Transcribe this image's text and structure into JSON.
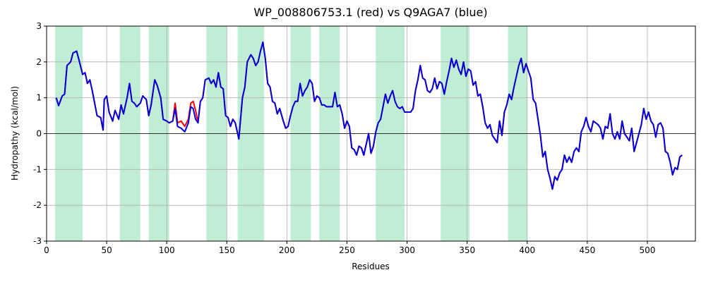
{
  "chart_data": {
    "type": "line",
    "title": "WP_008806753.1 (red) vs Q9AGA7 (blue)",
    "x_label": "Residues",
    "y_label": "Hydropathy (kcal/mol)",
    "xlim": [
      0,
      540
    ],
    "xticks": [
      0,
      50,
      100,
      150,
      200,
      250,
      300,
      350,
      400,
      450,
      500
    ],
    "ylim": [
      -3,
      3
    ],
    "yticks": [
      -3,
      -2,
      -1,
      0,
      1,
      2,
      3
    ],
    "grid": true,
    "reference_line": 0,
    "spans": [
      [
        7,
        30
      ],
      [
        61,
        78
      ],
      [
        85,
        102
      ],
      [
        133,
        150
      ],
      [
        159,
        181
      ],
      [
        203,
        220
      ],
      [
        227,
        244
      ],
      [
        274,
        298
      ],
      [
        328,
        352
      ],
      [
        384,
        400
      ]
    ],
    "span_color": "#c0eed4",
    "x": [
      8,
      10,
      13,
      15,
      17,
      20,
      22,
      25,
      27,
      30,
      32,
      34,
      36,
      38,
      40,
      42,
      45,
      47,
      48,
      50,
      52,
      55,
      57,
      60,
      62,
      64,
      67,
      69,
      71,
      73,
      75,
      78,
      80,
      83,
      85,
      87,
      90,
      92,
      95,
      97,
      100,
      102,
      105,
      107,
      109,
      112,
      115,
      118,
      120,
      122,
      124,
      126,
      128,
      130,
      132,
      135,
      137,
      139,
      141,
      143,
      145,
      147,
      149,
      151,
      153,
      155,
      157,
      160,
      163,
      165,
      167,
      170,
      172,
      174,
      176,
      178,
      180,
      182,
      184,
      186,
      188,
      190,
      192,
      194,
      197,
      199,
      201,
      203,
      205,
      207,
      209,
      211,
      213,
      215,
      217,
      219,
      221,
      223,
      225,
      227,
      229,
      231,
      233,
      236,
      238,
      240,
      242,
      244,
      246,
      248,
      250,
      252,
      254,
      256,
      258,
      260,
      262,
      264,
      266,
      268,
      270,
      272,
      274,
      276,
      278,
      280,
      282,
      284,
      286,
      288,
      290,
      292,
      294,
      296,
      298,
      300,
      303,
      305,
      307,
      309,
      311,
      313,
      315,
      317,
      319,
      321,
      323,
      325,
      327,
      329,
      331,
      333,
      335,
      337,
      339,
      341,
      343,
      345,
      347,
      349,
      351,
      353,
      355,
      357,
      359,
      361,
      363,
      365,
      367,
      369,
      371,
      373,
      375,
      377,
      379,
      381,
      383,
      385,
      387,
      389,
      391,
      393,
      395,
      397,
      399,
      401,
      403,
      405,
      407,
      409,
      411,
      413,
      415,
      417,
      419,
      421,
      423,
      425,
      427,
      429,
      431,
      433,
      435,
      437,
      439,
      441,
      443,
      445,
      447,
      449,
      451,
      453,
      455,
      457,
      459,
      461,
      463,
      465,
      467,
      469,
      471,
      473,
      475,
      477,
      479,
      481,
      483,
      485,
      487,
      489,
      491,
      493,
      495,
      497,
      499,
      501,
      503,
      505,
      507,
      509,
      511,
      513,
      515,
      517,
      519,
      521,
      523,
      525,
      527,
      529
    ],
    "series": [
      {
        "name": "WP_008806753.1",
        "color": "#ff0000",
        "values": [
          1.0,
          0.78,
          1.05,
          1.1,
          1.9,
          2.0,
          2.25,
          2.3,
          2.05,
          1.65,
          1.7,
          1.4,
          1.5,
          1.2,
          0.85,
          0.5,
          0.45,
          0.1,
          0.95,
          1.05,
          0.6,
          0.35,
          0.65,
          0.4,
          0.8,
          0.55,
          1.0,
          1.4,
          0.9,
          0.85,
          0.75,
          0.85,
          1.05,
          0.95,
          0.5,
          0.8,
          1.5,
          1.35,
          1.0,
          0.4,
          0.35,
          0.3,
          0.35,
          0.85,
          0.3,
          0.35,
          0.2,
          0.4,
          0.85,
          0.9,
          0.65,
          0.3,
          0.9,
          1.0,
          1.5,
          1.55,
          1.4,
          1.5,
          1.3,
          1.7,
          1.3,
          1.25,
          0.5,
          0.45,
          0.2,
          0.4,
          0.3,
          -0.15,
          1.0,
          1.3,
          2.0,
          2.2,
          2.1,
          1.9,
          2.0,
          2.3,
          2.55,
          2.1,
          1.4,
          1.3,
          0.9,
          0.85,
          0.55,
          0.7,
          0.35,
          0.15,
          0.2,
          0.5,
          0.75,
          0.9,
          0.9,
          1.4,
          1.05,
          1.2,
          1.3,
          1.5,
          1.4,
          0.9,
          1.05,
          1.0,
          0.8,
          0.8,
          0.75,
          0.75,
          0.75,
          1.15,
          0.75,
          0.8,
          0.55,
          0.15,
          0.35,
          0.2,
          -0.4,
          -0.45,
          -0.6,
          -0.35,
          -0.4,
          -0.6,
          -0.3,
          0.0,
          -0.55,
          -0.35,
          0.05,
          0.3,
          0.4,
          0.75,
          1.1,
          0.85,
          1.05,
          1.2,
          0.9,
          0.75,
          0.7,
          0.75,
          0.6,
          0.6,
          0.6,
          0.7,
          1.2,
          1.5,
          1.9,
          1.55,
          1.5,
          1.2,
          1.15,
          1.25,
          1.55,
          1.25,
          1.45,
          1.4,
          1.1,
          1.45,
          1.75,
          2.1,
          1.85,
          2.05,
          1.8,
          1.65,
          2.0,
          1.6,
          1.8,
          1.75,
          1.35,
          1.45,
          1.05,
          1.1,
          0.75,
          0.3,
          0.15,
          0.25,
          -0.05,
          -0.15,
          -0.25,
          0.35,
          -0.05,
          0.6,
          0.8,
          1.1,
          0.95,
          1.3,
          1.6,
          1.9,
          2.1,
          1.7,
          1.95,
          1.75,
          1.55,
          0.95,
          0.85,
          0.4,
          -0.05,
          -0.65,
          -0.5,
          -1.0,
          -1.25,
          -1.55,
          -1.2,
          -1.3,
          -1.1,
          -1.0,
          -0.6,
          -0.8,
          -0.65,
          -0.8,
          -0.5,
          -0.4,
          -0.5,
          0.05,
          0.2,
          0.45,
          0.2,
          0.05,
          0.35,
          0.3,
          0.25,
          0.15,
          -0.15,
          0.2,
          0.15,
          0.55,
          0.0,
          -0.15,
          0.05,
          -0.15,
          0.35,
          0.0,
          -0.1,
          -0.2,
          0.15,
          -0.5,
          -0.25,
          0.0,
          0.25,
          0.7,
          0.4,
          0.6,
          0.35,
          0.25,
          -0.1,
          0.25,
          0.3,
          0.15,
          -0.5,
          -0.55,
          -0.8,
          -1.15,
          -0.95,
          -1.0,
          -0.65,
          -0.6
        ]
      },
      {
        "name": "Q9AGA7",
        "color": "#0000dd",
        "values": [
          1.0,
          0.78,
          1.05,
          1.1,
          1.9,
          2.0,
          2.25,
          2.3,
          2.05,
          1.65,
          1.7,
          1.4,
          1.5,
          1.2,
          0.85,
          0.5,
          0.45,
          0.1,
          0.95,
          1.05,
          0.6,
          0.35,
          0.65,
          0.4,
          0.8,
          0.55,
          1.0,
          1.4,
          0.9,
          0.85,
          0.75,
          0.85,
          1.05,
          0.95,
          0.5,
          0.8,
          1.5,
          1.35,
          1.0,
          0.4,
          0.35,
          0.3,
          0.35,
          0.7,
          0.2,
          0.15,
          0.05,
          0.3,
          0.75,
          0.7,
          0.4,
          0.3,
          0.9,
          1.0,
          1.5,
          1.55,
          1.4,
          1.5,
          1.3,
          1.7,
          1.3,
          1.25,
          0.5,
          0.45,
          0.2,
          0.4,
          0.3,
          -0.15,
          1.0,
          1.3,
          2.0,
          2.2,
          2.1,
          1.9,
          2.0,
          2.3,
          2.55,
          2.1,
          1.4,
          1.3,
          0.9,
          0.85,
          0.55,
          0.7,
          0.35,
          0.15,
          0.2,
          0.5,
          0.75,
          0.9,
          0.9,
          1.4,
          1.05,
          1.2,
          1.3,
          1.5,
          1.4,
          0.9,
          1.05,
          1.0,
          0.8,
          0.8,
          0.75,
          0.75,
          0.75,
          1.15,
          0.75,
          0.8,
          0.55,
          0.15,
          0.35,
          0.2,
          -0.4,
          -0.45,
          -0.6,
          -0.35,
          -0.4,
          -0.6,
          -0.3,
          0.0,
          -0.55,
          -0.35,
          0.05,
          0.3,
          0.4,
          0.75,
          1.1,
          0.85,
          1.05,
          1.2,
          0.9,
          0.75,
          0.7,
          0.75,
          0.6,
          0.6,
          0.6,
          0.7,
          1.2,
          1.5,
          1.9,
          1.55,
          1.5,
          1.2,
          1.15,
          1.25,
          1.55,
          1.25,
          1.45,
          1.4,
          1.1,
          1.45,
          1.75,
          2.1,
          1.85,
          2.05,
          1.8,
          1.65,
          2.0,
          1.6,
          1.8,
          1.75,
          1.35,
          1.45,
          1.05,
          1.1,
          0.75,
          0.3,
          0.15,
          0.25,
          -0.05,
          -0.15,
          -0.25,
          0.35,
          -0.05,
          0.6,
          0.8,
          1.1,
          0.95,
          1.3,
          1.6,
          1.9,
          2.1,
          1.7,
          1.95,
          1.75,
          1.55,
          0.95,
          0.85,
          0.4,
          -0.05,
          -0.65,
          -0.5,
          -1.0,
          -1.25,
          -1.55,
          -1.2,
          -1.3,
          -1.1,
          -1.0,
          -0.6,
          -0.8,
          -0.65,
          -0.8,
          -0.5,
          -0.4,
          -0.5,
          0.05,
          0.2,
          0.45,
          0.2,
          0.05,
          0.35,
          0.3,
          0.25,
          0.15,
          -0.15,
          0.2,
          0.15,
          0.55,
          0.0,
          -0.15,
          0.05,
          -0.15,
          0.35,
          0.0,
          -0.1,
          -0.2,
          0.15,
          -0.5,
          -0.25,
          0.0,
          0.25,
          0.7,
          0.4,
          0.6,
          0.35,
          0.25,
          -0.1,
          0.25,
          0.3,
          0.15,
          -0.5,
          -0.55,
          -0.8,
          -1.15,
          -0.95,
          -1.0,
          -0.65,
          -0.6
        ]
      }
    ]
  }
}
